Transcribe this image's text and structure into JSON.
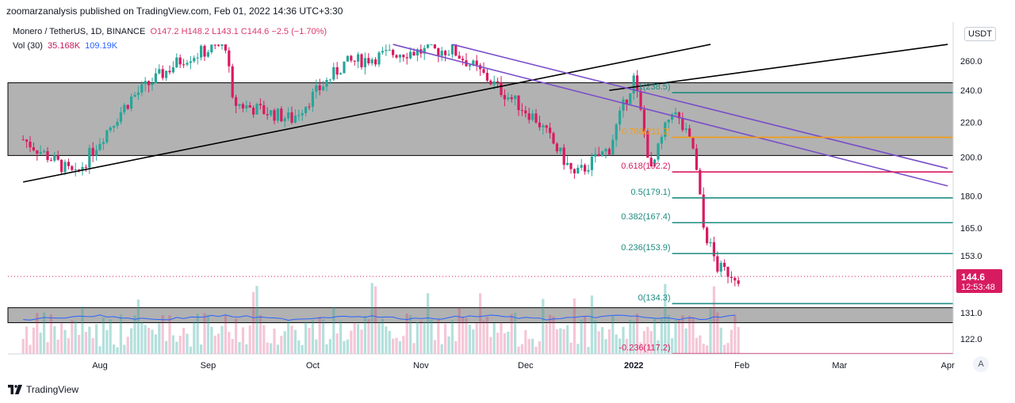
{
  "header": {
    "publisher_text": "zoomarzanalysis published on TradingView.com, Feb 01, 2022 14:36 UTC+3:30"
  },
  "legend": {
    "symbol": "Monero / TetherUS, 1D, BINANCE",
    "ohlc": "O147.2  H148.2  L143.1  C144.6  −2.5 (−1.70%)",
    "volume_label": "Vol (30)",
    "volume_value": "35.168K",
    "volume_ma": "109.19K"
  },
  "currency": "USDT",
  "last_price": {
    "price": "144.6",
    "countdown": "12:53:48"
  },
  "colors": {
    "up": "#26a69a",
    "down": "#d81b60",
    "zone": "#b2b2b2",
    "channel": "#7b4fc9",
    "trend": "#000000",
    "fib_green": "#1e8c82",
    "fib_orange": "#f59c12",
    "fib_pink": "#d81b60",
    "vol_ma": "#2962ff"
  },
  "auto_scale_label": "A",
  "footer": {
    "brand": "TradingView"
  },
  "chart_data": {
    "type": "candlestick",
    "title": "",
    "x_ticks": [
      "Aug",
      "Sep",
      "Oct",
      "Nov",
      "Dec",
      "2022",
      "Feb",
      "Mar",
      "Apr"
    ],
    "y_ticks": [
      "122.0",
      "131.0",
      "153.0",
      "165.0",
      "180.0",
      "200.0",
      "220.0",
      "240.0",
      "260.0"
    ],
    "y_range": [
      117,
      272
    ],
    "y_scale": "log",
    "zones": [
      {
        "from": 201,
        "to": 245
      },
      {
        "from": 127.5,
        "to": 132.8
      }
    ],
    "fibonacci": [
      {
        "label": "1(238.5)",
        "value": 238.5,
        "color": "green"
      },
      {
        "label": "0.786(211.2)",
        "value": 211.2,
        "color": "orange"
      },
      {
        "label": "0.618(192.2)",
        "value": 192.2,
        "color": "pink"
      },
      {
        "label": "0.5(179.1)",
        "value": 179.1,
        "color": "green"
      },
      {
        "label": "0.382(167.4)",
        "value": 167.4,
        "color": "green"
      },
      {
        "label": "0.236(153.9)",
        "value": 153.9,
        "color": "green"
      },
      {
        "label": "0(134.3)",
        "value": 134.3,
        "color": "green"
      },
      {
        "label": "-0.236(117.2)",
        "value": 117.2,
        "color": "pink"
      }
    ],
    "trend_lines": [
      {
        "name": "lower trendline",
        "from": [
          "Jul 10",
          187
        ],
        "to": [
          "Jan 23",
          272
        ]
      },
      {
        "name": "upper trendline",
        "from": [
          "Dec 25",
          240
        ],
        "to": [
          "Apr 01",
          272
        ]
      }
    ],
    "channel_lines": [
      {
        "from": [
          "Oct 24",
          272
        ],
        "to": [
          "Apr 01",
          185
        ]
      },
      {
        "from": [
          "Nov 10",
          272
        ],
        "to": [
          "Apr 01",
          194
        ]
      }
    ],
    "ohlc": {
      "open": 147.2,
      "high": 148.2,
      "low": 143.1,
      "close": 144.6,
      "change": -2.5,
      "change_pct": -1.7
    },
    "last_price": 144.6,
    "candles_summary": [
      {
        "date": "Jul 10",
        "close": 210
      },
      {
        "date": "Jul 25",
        "close": 190
      },
      {
        "date": "Aug 10",
        "close": 235
      },
      {
        "date": "Aug 25",
        "close": 262
      },
      {
        "date": "Sep 06",
        "close": 272
      },
      {
        "date": "Sep 08",
        "close": 232
      },
      {
        "date": "Sep 25",
        "close": 222
      },
      {
        "date": "Oct 10",
        "close": 258
      },
      {
        "date": "Oct 25",
        "close": 266
      },
      {
        "date": "Nov 10",
        "close": 268
      },
      {
        "date": "Nov 25",
        "close": 238
      },
      {
        "date": "Dec 04",
        "close": 222
      },
      {
        "date": "Dec 15",
        "close": 190
      },
      {
        "date": "Dec 25",
        "close": 205
      },
      {
        "date": "Jan 01",
        "close": 248
      },
      {
        "date": "Jan 06",
        "close": 192
      },
      {
        "date": "Jan 12",
        "close": 228
      },
      {
        "date": "Jan 18",
        "close": 205
      },
      {
        "date": "Jan 21",
        "close": 165
      },
      {
        "date": "Jan 25",
        "close": 148
      },
      {
        "date": "Jan 31",
        "close": 144.6
      }
    ],
    "volume": {
      "series_name": "Vol (30)",
      "last": "35.168K",
      "ma": "109.19K"
    }
  }
}
